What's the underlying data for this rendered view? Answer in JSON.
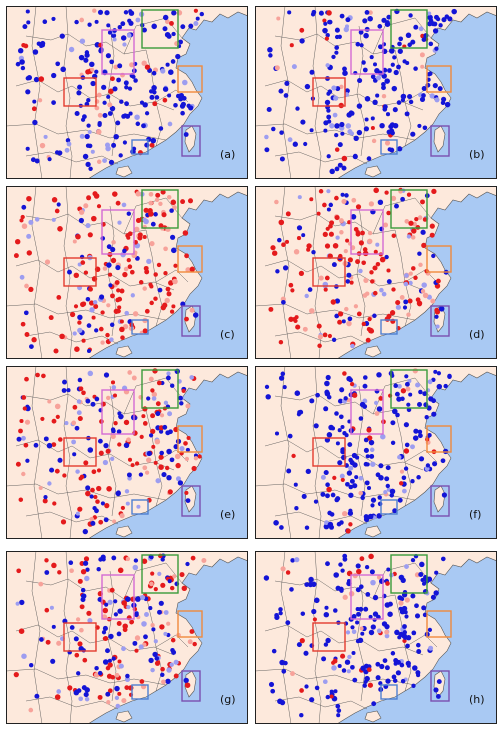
{
  "figure": {
    "panel_labels": [
      "(a)",
      "(b)",
      "(c)",
      "(d)",
      "(e)",
      "(f)",
      "(g)",
      "(h)"
    ],
    "panel_dominant_tone": [
      "blue",
      "blue",
      "red",
      "red",
      "mixed",
      "blue",
      "mixed",
      "blue"
    ],
    "colors": {
      "land": "#fde9dc",
      "sea": "#a9c9f3",
      "boundary": "#555555",
      "strong_red": "#e41a1c",
      "light_red": "#f7a29a",
      "strong_blue": "#1414d6",
      "light_blue": "#9d9df0",
      "box_green": "#3a9a3a",
      "box_magenta": "#d36ad3",
      "box_red": "#e33b2f",
      "box_orange": "#f08a3c",
      "box_blue": "#4f7fd0",
      "box_purple": "#7a4fb0"
    },
    "region_boxes": [
      "green",
      "magenta",
      "red",
      "orange",
      "blue",
      "purple"
    ]
  }
}
